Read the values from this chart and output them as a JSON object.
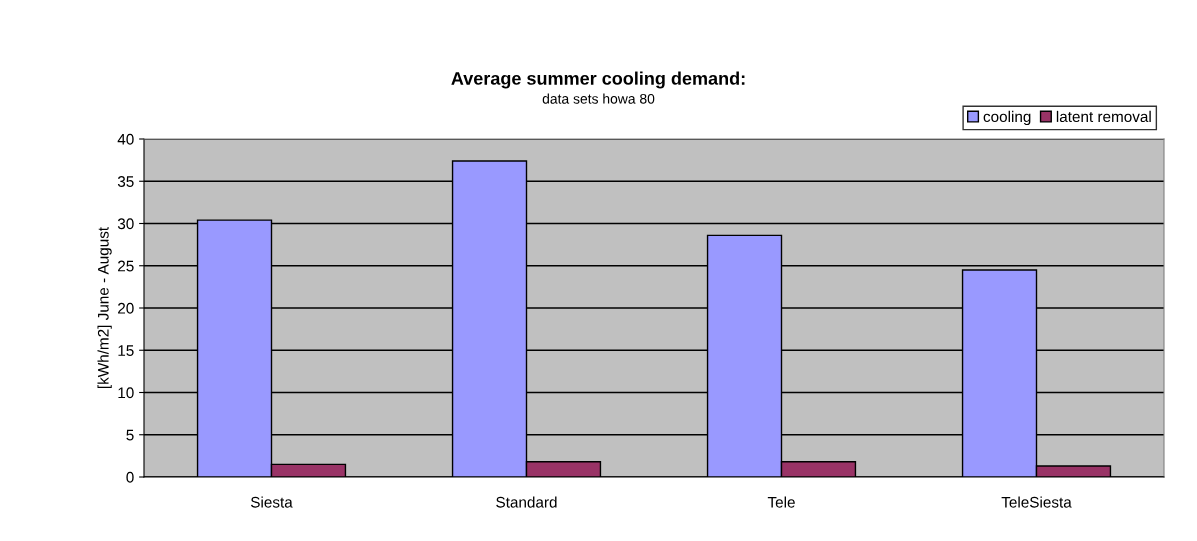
{
  "chart_data": {
    "type": "bar",
    "title": "Average summer cooling demand:",
    "subtitle": "data sets howa 80",
    "ylabel": "[kWh/m2] June - August",
    "categories": [
      "Siesta",
      "Standard",
      "Tele",
      "TeleSiesta"
    ],
    "series": [
      {
        "name": "cooling",
        "color": "#9999ff",
        "values": [
          30.4,
          37.4,
          28.6,
          24.5
        ]
      },
      {
        "name": "latent removal",
        "color": "#993366",
        "values": [
          1.5,
          1.8,
          1.8,
          1.3
        ]
      }
    ],
    "ylim": [
      0,
      40
    ],
    "yticks": [
      0,
      5,
      10,
      15,
      20,
      25,
      30,
      35,
      40
    ],
    "grid": "y",
    "legend": "top right"
  }
}
